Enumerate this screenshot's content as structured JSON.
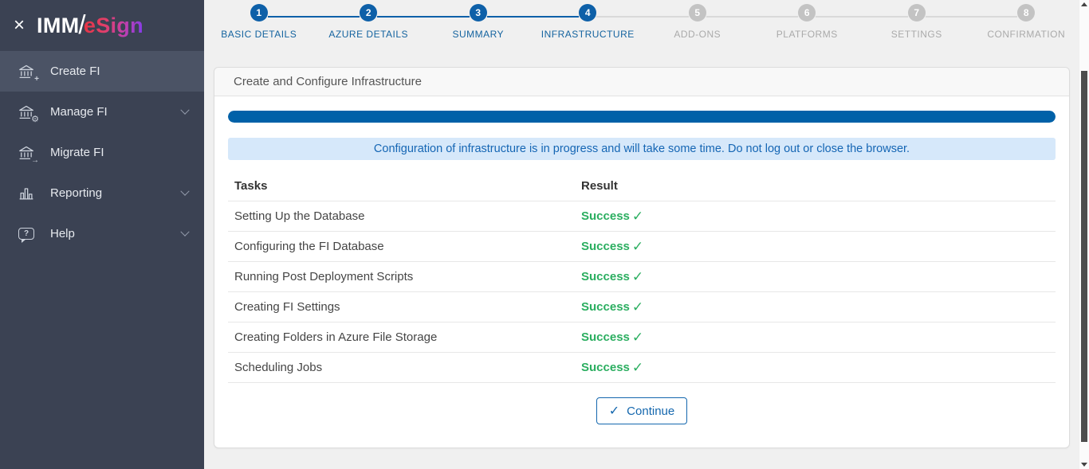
{
  "brand": {
    "imm": "IMM",
    "slash": "/",
    "esign": "eSign"
  },
  "icons": {
    "close": "×",
    "check": "✓",
    "plus": "+",
    "gear": "⚙",
    "arrow": "→",
    "question": "?"
  },
  "sidebar": {
    "items": [
      {
        "label": "Create FI"
      },
      {
        "label": "Manage FI"
      },
      {
        "label": "Migrate FI"
      },
      {
        "label": "Reporting"
      },
      {
        "label": "Help"
      }
    ]
  },
  "stepper": {
    "steps": [
      {
        "num": "1",
        "label": "BASIC DETAILS",
        "state": "done"
      },
      {
        "num": "2",
        "label": "AZURE DETAILS",
        "state": "done"
      },
      {
        "num": "3",
        "label": "SUMMARY",
        "state": "done"
      },
      {
        "num": "4",
        "label": "INFRASTRUCTURE",
        "state": "done"
      },
      {
        "num": "5",
        "label": "ADD-ONS",
        "state": "todo"
      },
      {
        "num": "6",
        "label": "PLATFORMS",
        "state": "todo"
      },
      {
        "num": "7",
        "label": "SETTINGS",
        "state": "todo"
      },
      {
        "num": "8",
        "label": "CONFIRMATION",
        "state": "todo"
      }
    ]
  },
  "panel": {
    "title": "Create and Configure Infrastructure",
    "progress_percent": 100,
    "alert": "Configuration of infrastructure is in progress and will take some time. Do not log out or close the browser.",
    "table": {
      "col_tasks": "Tasks",
      "col_result": "Result",
      "rows": [
        {
          "task": "Setting Up the Database",
          "result": "Success"
        },
        {
          "task": "Configuring the FI Database",
          "result": "Success"
        },
        {
          "task": "Running Post Deployment Scripts",
          "result": "Success"
        },
        {
          "task": "Creating FI Settings",
          "result": "Success"
        },
        {
          "task": "Creating Folders in Azure File Storage",
          "result": "Success"
        },
        {
          "task": "Scheduling Jobs",
          "result": "Success"
        }
      ]
    },
    "continue_label": "Continue"
  },
  "colors": {
    "primary_blue": "#0e60a8",
    "progress_blue": "#0061a8",
    "success_green": "#2bae60",
    "alert_bg": "#d6e8fa",
    "alert_text": "#1566b4",
    "sidebar_bg": "#3b4253",
    "sidebar_active_bg": "#4b5365",
    "step_inactive_gray": "#c3c3c3"
  }
}
